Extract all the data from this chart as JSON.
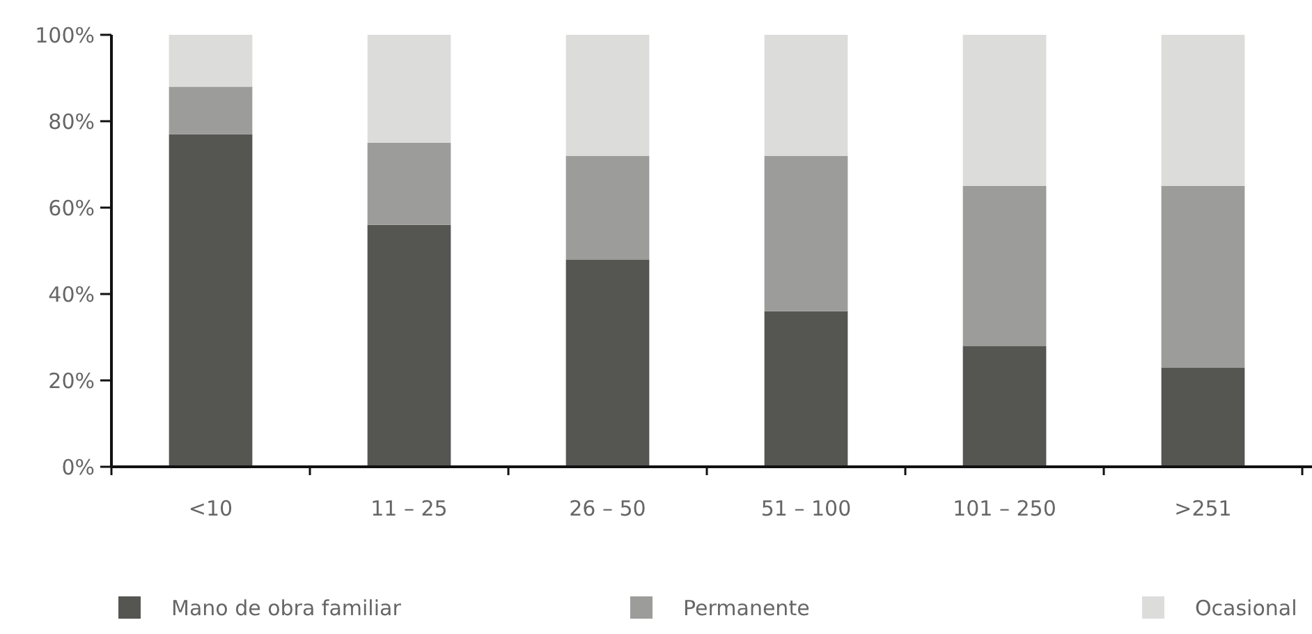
{
  "chart_data": {
    "type": "bar",
    "stacked": true,
    "categories": [
      "<10",
      "11 – 25",
      "26 – 50",
      "51 – 100",
      "101 – 250",
      ">251"
    ],
    "series": [
      {
        "name": "Mano de obra familiar",
        "color": "#555652",
        "values": [
          77,
          56,
          48,
          36,
          28,
          23
        ]
      },
      {
        "name": "Permanente",
        "color": "#9c9d9a",
        "values": [
          11,
          19,
          24,
          36,
          37,
          42
        ]
      },
      {
        "name": "Ocasional",
        "color": "#dcdddb",
        "values": [
          12,
          25,
          28,
          28,
          35,
          35
        ]
      }
    ],
    "ylim": [
      0,
      100
    ],
    "yticks": [
      {
        "value": 0,
        "label": "0%"
      },
      {
        "value": 20,
        "label": "20%"
      },
      {
        "value": 40,
        "label": "40%"
      },
      {
        "value": 60,
        "label": "60%"
      },
      {
        "value": 80,
        "label": "80%"
      },
      {
        "value": 100,
        "label": "100%"
      }
    ],
    "grid": false,
    "legend": "bottom"
  }
}
